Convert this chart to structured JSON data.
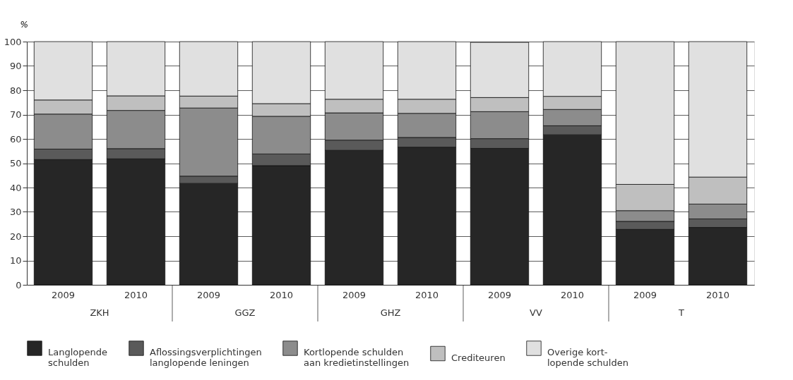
{
  "chart_data": {
    "type": "bar",
    "stacked": true,
    "ylabel": "%",
    "categories": [
      "2009",
      "2010",
      "2009",
      "2010",
      "2009",
      "2010",
      "2009",
      "2010",
      "2009",
      "2010"
    ],
    "annotations": [
      "ZKH",
      "GGZ",
      "GHZ",
      "VV",
      "T"
    ],
    "series": [
      {
        "name": "Langlopende\nschulden",
        "color": "#262626",
        "values": [
          51.5,
          51.8,
          41.7,
          49.0,
          55.3,
          56.6,
          56.1,
          61.7,
          22.8,
          23.6
        ]
      },
      {
        "name": "Aflossingsverplichtingen\nlanglopende leningen",
        "color": "#5a5a5a",
        "values": [
          4.3,
          4.2,
          3.0,
          4.8,
          4.2,
          4.0,
          4.0,
          3.7,
          3.3,
          3.5
        ]
      },
      {
        "name": "Kortlopende schulden\naan kredietinstellingen",
        "color": "#8c8c8c",
        "values": [
          14.4,
          15.7,
          28.0,
          15.5,
          11.2,
          9.9,
          11.1,
          6.7,
          4.4,
          6.1
        ]
      },
      {
        "name": "Crediteuren",
        "color": "#bfbfbf",
        "values": [
          5.8,
          6.0,
          4.9,
          5.2,
          5.6,
          5.8,
          5.8,
          5.4,
          10.8,
          11.1
        ]
      },
      {
        "name": "Overige kort-\nlopende schulden",
        "color": "#e0e0e0",
        "values": [
          24.0,
          22.3,
          22.4,
          25.5,
          23.7,
          23.7,
          22.7,
          22.5,
          58.7,
          55.7
        ]
      }
    ],
    "ylim": [
      0,
      100
    ],
    "yticks": [
      0,
      10,
      20,
      30,
      40,
      50,
      60,
      70,
      80,
      90,
      100
    ],
    "grid": "y",
    "legend": "bottom"
  }
}
